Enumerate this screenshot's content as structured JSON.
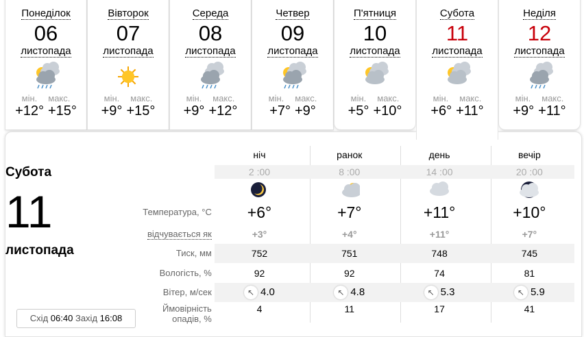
{
  "days": [
    {
      "name": "Понеділок",
      "date": "06",
      "month": "листопада",
      "icon": "sun-clouds-rain-icon",
      "min_label": "мін.",
      "max_label": "макс.",
      "min": "+12°",
      "max": "+15°",
      "weekend": false
    },
    {
      "name": "Вівторок",
      "date": "07",
      "month": "листопада",
      "icon": "sun-icon",
      "min_label": "мін.",
      "max_label": "макс.",
      "min": "+9°",
      "max": "+15°",
      "weekend": false
    },
    {
      "name": "Середа",
      "date": "08",
      "month": "листопада",
      "icon": "clouds-rain-icon",
      "min_label": "мін.",
      "max_label": "макс.",
      "min": "+9°",
      "max": "+12°",
      "weekend": false
    },
    {
      "name": "Четвер",
      "date": "09",
      "month": "листопада",
      "icon": "sun-clouds-rain-icon",
      "min_label": "мін.",
      "max_label": "макс.",
      "min": "+7°",
      "max": "+9°",
      "weekend": false
    },
    {
      "name": "П'ятниця",
      "date": "10",
      "month": "листопада",
      "icon": "sun-clouds-icon",
      "min_label": "мін.",
      "max_label": "макс.",
      "min": "+5°",
      "max": "+10°",
      "weekend": false
    },
    {
      "name": "Субота",
      "date": "11",
      "month": "листопада",
      "icon": "sun-clouds-icon",
      "min_label": "мін.",
      "max_label": "макс.",
      "min": "+6°",
      "max": "+11°",
      "weekend": true,
      "selected": true
    },
    {
      "name": "Неділя",
      "date": "12",
      "month": "листопада",
      "icon": "clouds-light-rain-icon",
      "min_label": "мін.",
      "max_label": "макс.",
      "min": "+9°",
      "max": "+11°",
      "weekend": true
    }
  ],
  "detail": {
    "day_name": "Субота",
    "date": "11",
    "month": "листопада",
    "sunrise_label": "Схід",
    "sunrise": "06:40",
    "sunset_label": "Захід",
    "sunset": "16:08",
    "periods": [
      "ніч",
      "ранок",
      "день",
      "вечір"
    ],
    "times": [
      "2 :00",
      "8 :00",
      "14 :00",
      "20 :00"
    ],
    "icons": [
      "moon-icon",
      "sun-cloud-icon",
      "cloud-icon",
      "dark-cloud-icon"
    ],
    "labels": {
      "temp": "Температура, °C",
      "feels": "відчувається як",
      "pressure": "Тиск, мм",
      "humidity": "Вологість, %",
      "wind": "Вітер, м/сек",
      "precip": "Ймовірність опадів, %"
    },
    "temp": [
      "+6°",
      "+7°",
      "+11°",
      "+10°"
    ],
    "feels": [
      "+3°",
      "+4°",
      "+11°",
      "+7°"
    ],
    "pressure": [
      "752",
      "751",
      "748",
      "745"
    ],
    "humidity": [
      "92",
      "92",
      "74",
      "81"
    ],
    "wind_dir": [
      "↖",
      "↖",
      "↖",
      "↖"
    ],
    "wind": [
      "4.0",
      "4.8",
      "5.3",
      "5.9"
    ],
    "precip": [
      "4",
      "11",
      "17",
      "41"
    ]
  },
  "colors": {
    "weekend": "#c8000a"
  }
}
